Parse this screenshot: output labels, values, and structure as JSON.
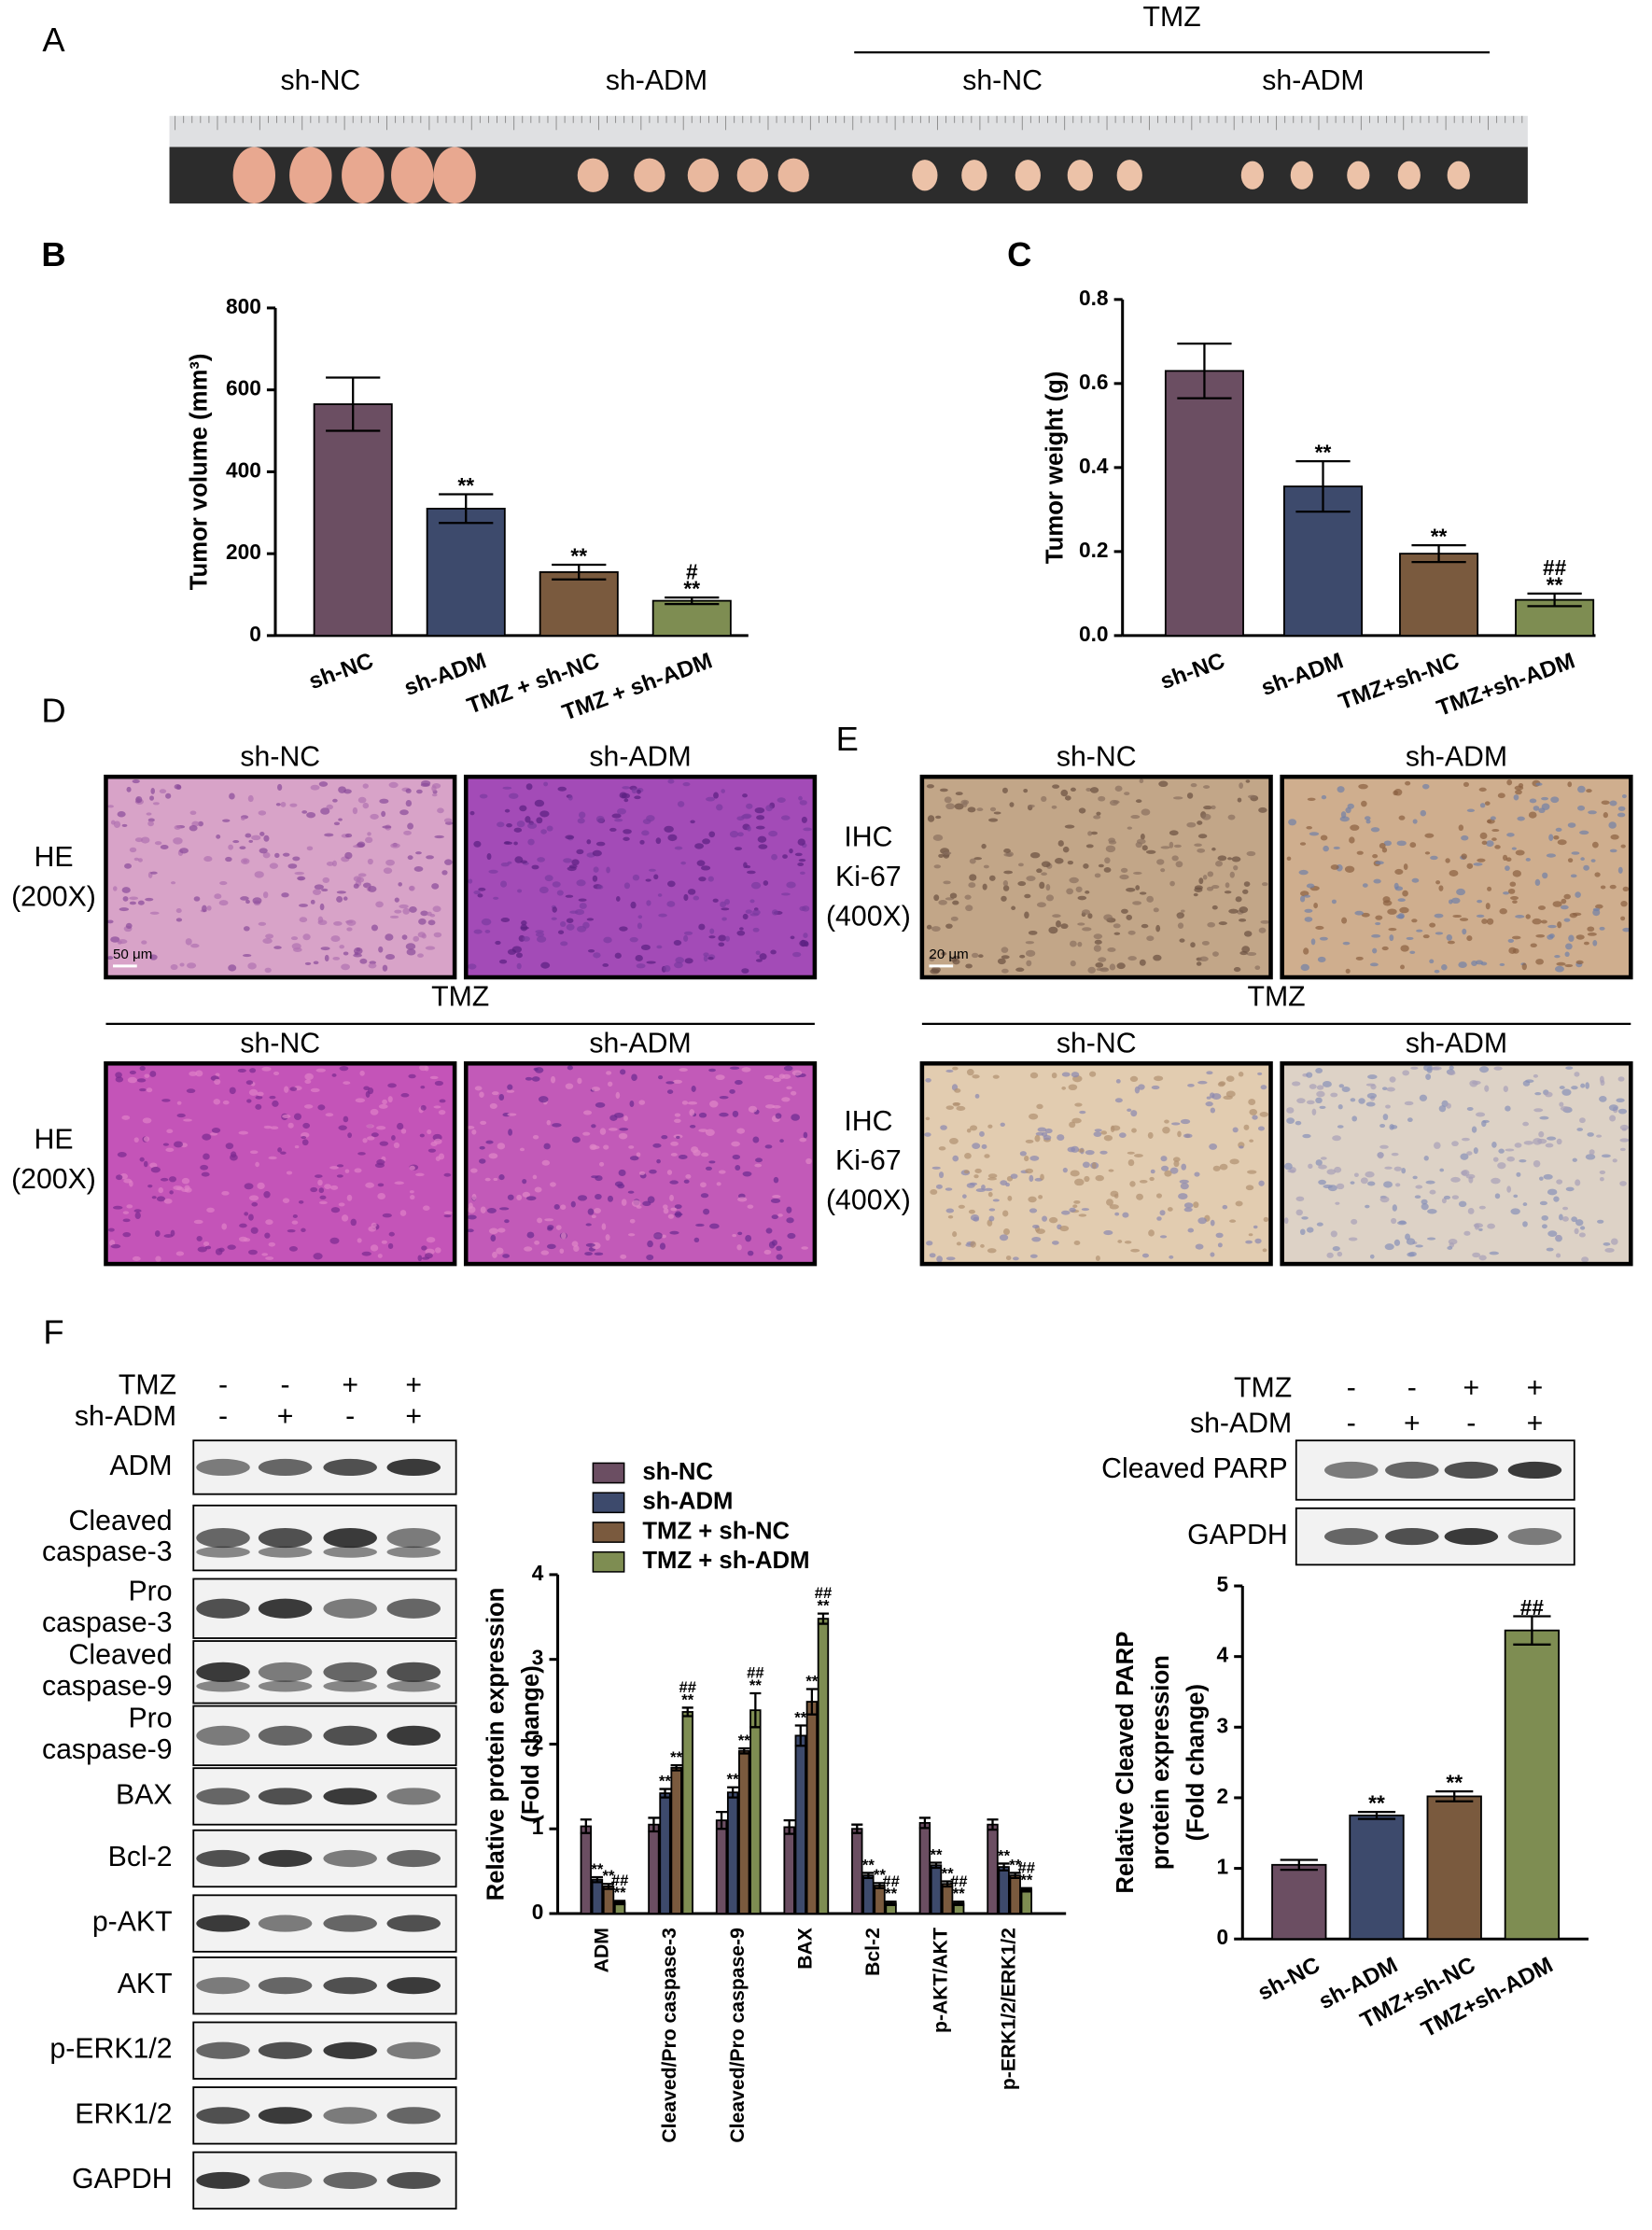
{
  "panel_a": {
    "label": "A",
    "groups": [
      "sh-NC",
      "sh-ADM"
    ],
    "tmz_label": "TMZ",
    "tmz_groups": [
      "sh-NC",
      "sh-ADM"
    ]
  },
  "panel_d": {
    "label": "D",
    "groups": [
      "sh-NC",
      "sh-ADM"
    ],
    "stain": [
      "HE",
      "(200X)"
    ],
    "scale_bar": "50 μm",
    "tmz_label": "TMZ",
    "tmz_groups": [
      "sh-NC",
      "sh-ADM"
    ],
    "tmz_stain": [
      "HE",
      "(200X)"
    ]
  },
  "panel_e": {
    "label": "E",
    "groups": [
      "sh-NC",
      "sh-ADM"
    ],
    "stain": [
      "IHC",
      "Ki-67",
      "(400X)"
    ],
    "scale_bar": "20 μm",
    "tmz_label": "TMZ",
    "tmz_groups": [
      "sh-NC",
      "sh-ADM"
    ],
    "tmz_stain": [
      "IHC",
      "Ki-67",
      "(400X)"
    ]
  },
  "panel_f_blots": {
    "label": "F",
    "treatments": [
      {
        "name": "TMZ",
        "signs": [
          "-",
          "-",
          "+",
          "+"
        ]
      },
      {
        "name": "sh-ADM",
        "signs": [
          "-",
          "+",
          "-",
          "+"
        ]
      }
    ],
    "rows": [
      [
        "ADM"
      ],
      [
        "Cleaved",
        "caspase-3"
      ],
      [
        "Pro",
        "caspase-3"
      ],
      [
        "Cleaved",
        "caspase-9"
      ],
      [
        "Pro",
        "caspase-9"
      ],
      [
        "BAX"
      ],
      [
        "Bcl-2"
      ],
      [
        "p-AKT"
      ],
      [
        "AKT"
      ],
      [
        "p-ERK1/2"
      ],
      [
        "ERK1/2"
      ],
      [
        "GAPDH"
      ]
    ]
  },
  "panel_f_parp_blot": {
    "treatments": [
      {
        "name": "TMZ",
        "signs": [
          "-",
          "-",
          "+",
          "+"
        ]
      },
      {
        "name": "sh-ADM",
        "signs": [
          "-",
          "+",
          "-",
          "+"
        ]
      }
    ],
    "rows": [
      [
        "Cleaved PARP"
      ],
      [
        "GAPDH"
      ]
    ]
  },
  "chart_data": [
    {
      "panel": "B",
      "type": "bar",
      "y_label": "Tumor volume (mm³)",
      "categories": [
        "sh-NC",
        "sh-ADM",
        "TMZ + sh-NC",
        "TMZ + sh-ADM"
      ],
      "values": [
        565,
        310,
        155,
        85
      ],
      "errors": [
        65,
        35,
        18,
        8
      ],
      "annotations": [
        null,
        [
          "**"
        ],
        [
          "**"
        ],
        [
          "#",
          "**"
        ]
      ],
      "colors": [
        "#6b4e62",
        "#3d4a6c",
        "#7a5a3e",
        "#7e8d52"
      ],
      "ylim": [
        0,
        800
      ],
      "yticks": [
        0,
        200,
        400,
        600,
        800
      ]
    },
    {
      "panel": "C",
      "type": "bar",
      "y_label": "Tumor weight (g)",
      "categories": [
        "sh-NC",
        "sh-ADM",
        "TMZ+sh-NC",
        "TMZ+sh-ADM"
      ],
      "values": [
        0.63,
        0.355,
        0.195,
        0.085
      ],
      "errors": [
        0.065,
        0.06,
        0.02,
        0.015
      ],
      "annotations": [
        null,
        [
          "**"
        ],
        [
          "**"
        ],
        [
          "##",
          "**"
        ]
      ],
      "colors": [
        "#6b4e62",
        "#3d4a6c",
        "#7a5a3e",
        "#7e8d52"
      ],
      "ylim": [
        0,
        0.8
      ],
      "yticks": [
        {
          "value": 0,
          "label": "0.0"
        },
        0.2,
        0.4,
        0.6,
        0.8
      ]
    },
    {
      "type": "grouped_bar",
      "y_label": [
        "Relative protein expression",
        "(Fold change)"
      ],
      "categories": [
        "ADM",
        "Cleaved/Pro caspase-3",
        "Cleaved/Pro caspase-9",
        "BAX",
        "Bcl-2",
        "p-AKT/AKT",
        "p-ERK1/2/ERK1/2"
      ],
      "series": [
        {
          "name": "sh-NC",
          "color": "#6b4e62",
          "values": [
            1.03,
            1.05,
            1.1,
            1.02,
            1.0,
            1.07,
            1.05
          ],
          "errors": [
            0.08,
            0.08,
            0.1,
            0.08,
            0.05,
            0.06,
            0.06
          ]
        },
        {
          "name": "sh-ADM",
          "color": "#3d4a6c",
          "values": [
            0.4,
            1.42,
            1.43,
            2.1,
            0.45,
            0.57,
            0.55
          ],
          "errors": [
            0.03,
            0.05,
            0.06,
            0.12,
            0.03,
            0.03,
            0.04
          ],
          "annotation": [
            "**"
          ]
        },
        {
          "name": "TMZ + sh-NC",
          "color": "#7a5a3e",
          "values": [
            0.32,
            1.72,
            1.92,
            2.5,
            0.33,
            0.35,
            0.45
          ],
          "errors": [
            0.03,
            0.03,
            0.03,
            0.15,
            0.03,
            0.03,
            0.03
          ],
          "annotation": [
            "**"
          ]
        },
        {
          "name": "TMZ + sh-ADM",
          "color": "#7e8d52",
          "values": [
            0.13,
            2.38,
            2.4,
            3.48,
            0.12,
            0.12,
            0.28
          ],
          "errors": [
            0.02,
            0.05,
            0.2,
            0.06,
            0.02,
            0.02,
            0.02
          ],
          "annotation": [
            "##",
            "**"
          ]
        }
      ],
      "ylim": [
        0,
        4
      ],
      "yticks": [
        0,
        1,
        2,
        3,
        4
      ]
    },
    {
      "type": "bar",
      "y_label": [
        "Relative Cleaved PARP",
        "protein expression",
        "(Fold change)"
      ],
      "categories": [
        "sh-NC",
        "sh-ADM",
        "TMZ+sh-NC",
        "TMZ+sh-ADM"
      ],
      "values": [
        1.05,
        1.75,
        2.02,
        4.37
      ],
      "errors": [
        0.07,
        0.05,
        0.07,
        0.2
      ],
      "annotations": [
        null,
        [
          "**"
        ],
        [
          "**"
        ],
        [
          "##"
        ]
      ],
      "colors": [
        "#6b4e62",
        "#3d4a6c",
        "#7a5a3e",
        "#7e8d52"
      ],
      "ylim": [
        0,
        5
      ],
      "yticks": [
        0,
        1,
        2,
        3,
        4,
        5
      ]
    }
  ]
}
